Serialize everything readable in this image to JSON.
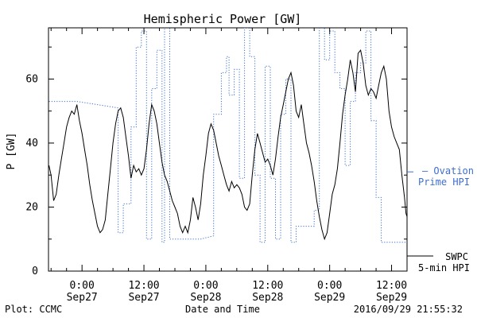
{
  "chart_data": {
    "type": "line",
    "title": "Hemispheric Power [GW]",
    "xlabel": "Date and Time",
    "ylabel": "P [GW]",
    "x_unit": "hours since Sep27 00:00",
    "xlim": [
      -6.5,
      63
    ],
    "ylim": [
      0,
      76
    ],
    "yticks": [
      0,
      20,
      40,
      60
    ],
    "xticks": [
      {
        "x": 0,
        "time": "0:00",
        "date": "Sep27"
      },
      {
        "x": 12,
        "time": "12:00",
        "date": "Sep27"
      },
      {
        "x": 24,
        "time": "0:00",
        "date": "Sep28"
      },
      {
        "x": 36,
        "time": "12:00",
        "date": "Sep28"
      },
      {
        "x": 48,
        "time": "0:00",
        "date": "Sep29"
      },
      {
        "x": 60,
        "time": "12:00",
        "date": "Sep29"
      }
    ],
    "grid": false,
    "legend_position": "right",
    "footer_left": "Plot: CCMC",
    "footer_right": "2016/09/29 21:55:32",
    "series": [
      {
        "name": "SWPC 5-min HPI",
        "legend_line1": "SWPC",
        "legend_line2": "5-min HPI",
        "color": "#000000",
        "style": "solid",
        "points": [
          [
            -6.4,
            33
          ],
          [
            -6.0,
            30
          ],
          [
            -5.5,
            22
          ],
          [
            -5.0,
            24
          ],
          [
            -4.5,
            30
          ],
          [
            -4.0,
            35
          ],
          [
            -3.5,
            40
          ],
          [
            -3.0,
            45
          ],
          [
            -2.5,
            48
          ],
          [
            -2.0,
            50
          ],
          [
            -1.5,
            49
          ],
          [
            -1.0,
            52
          ],
          [
            -0.5,
            47
          ],
          [
            0.0,
            43
          ],
          [
            0.5,
            38
          ],
          [
            1.0,
            33
          ],
          [
            1.5,
            27
          ],
          [
            2.0,
            22
          ],
          [
            2.5,
            18
          ],
          [
            3.0,
            14
          ],
          [
            3.5,
            12
          ],
          [
            4.0,
            13
          ],
          [
            4.5,
            16
          ],
          [
            5.0,
            24
          ],
          [
            5.5,
            32
          ],
          [
            6.0,
            40
          ],
          [
            6.5,
            46
          ],
          [
            7.0,
            50
          ],
          [
            7.5,
            51
          ],
          [
            8.0,
            48
          ],
          [
            8.5,
            42
          ],
          [
            9.0,
            36
          ],
          [
            9.5,
            29
          ],
          [
            10.0,
            33
          ],
          [
            10.5,
            31
          ],
          [
            11.0,
            32
          ],
          [
            11.5,
            30
          ],
          [
            12.0,
            32
          ],
          [
            12.5,
            38
          ],
          [
            13.0,
            46
          ],
          [
            13.5,
            52
          ],
          [
            14.0,
            50
          ],
          [
            14.5,
            46
          ],
          [
            15.0,
            40
          ],
          [
            15.5,
            34
          ],
          [
            16.0,
            30
          ],
          [
            16.5,
            28
          ],
          [
            17.0,
            25
          ],
          [
            17.5,
            22
          ],
          [
            18.0,
            20
          ],
          [
            18.5,
            18
          ],
          [
            19.0,
            14
          ],
          [
            19.5,
            12
          ],
          [
            20.0,
            14
          ],
          [
            20.5,
            12
          ],
          [
            21.0,
            16
          ],
          [
            21.5,
            23
          ],
          [
            22.0,
            20
          ],
          [
            22.5,
            16
          ],
          [
            23.0,
            21
          ],
          [
            23.5,
            30
          ],
          [
            24.0,
            36
          ],
          [
            24.5,
            43
          ],
          [
            25.0,
            46
          ],
          [
            25.5,
            44
          ],
          [
            26.0,
            40
          ],
          [
            26.5,
            36
          ],
          [
            27.0,
            33
          ],
          [
            27.5,
            30
          ],
          [
            28.0,
            27
          ],
          [
            28.5,
            25
          ],
          [
            29.0,
            28
          ],
          [
            29.5,
            26
          ],
          [
            30.0,
            27
          ],
          [
            30.5,
            26
          ],
          [
            31.0,
            24
          ],
          [
            31.5,
            20
          ],
          [
            32.0,
            19
          ],
          [
            32.5,
            21
          ],
          [
            33.0,
            30
          ],
          [
            33.5,
            38
          ],
          [
            34.0,
            43
          ],
          [
            34.5,
            40
          ],
          [
            35.0,
            37
          ],
          [
            35.5,
            34
          ],
          [
            36.0,
            35
          ],
          [
            36.5,
            33
          ],
          [
            37.0,
            30
          ],
          [
            37.5,
            35
          ],
          [
            38.0,
            42
          ],
          [
            38.5,
            48
          ],
          [
            39.0,
            52
          ],
          [
            39.5,
            56
          ],
          [
            40.0,
            60
          ],
          [
            40.5,
            62
          ],
          [
            41.0,
            58
          ],
          [
            41.5,
            50
          ],
          [
            42.0,
            48
          ],
          [
            42.5,
            52
          ],
          [
            43.0,
            46
          ],
          [
            43.5,
            40
          ],
          [
            44.0,
            37
          ],
          [
            44.5,
            33
          ],
          [
            45.0,
            28
          ],
          [
            45.5,
            22
          ],
          [
            46.0,
            17
          ],
          [
            46.5,
            13
          ],
          [
            47.0,
            10
          ],
          [
            47.5,
            12
          ],
          [
            48.0,
            18
          ],
          [
            48.5,
            24
          ],
          [
            49.0,
            27
          ],
          [
            49.5,
            32
          ],
          [
            50.0,
            40
          ],
          [
            50.5,
            49
          ],
          [
            51.0,
            55
          ],
          [
            51.5,
            60
          ],
          [
            52.0,
            66
          ],
          [
            52.5,
            62
          ],
          [
            53.0,
            56
          ],
          [
            53.5,
            68
          ],
          [
            54.0,
            69
          ],
          [
            54.5,
            65
          ],
          [
            55.0,
            58
          ],
          [
            55.5,
            55
          ],
          [
            56.0,
            57
          ],
          [
            56.5,
            56
          ],
          [
            57.0,
            54
          ],
          [
            57.5,
            58
          ],
          [
            58.0,
            62
          ],
          [
            58.5,
            64
          ],
          [
            59.0,
            60
          ],
          [
            59.5,
            50
          ],
          [
            60.0,
            45
          ],
          [
            60.5,
            42
          ],
          [
            61.0,
            40
          ],
          [
            61.5,
            38
          ],
          [
            62.0,
            30
          ],
          [
            62.5,
            23
          ],
          [
            62.8,
            18
          ],
          [
            63.0,
            17
          ]
        ]
      },
      {
        "name": "Ovation Prime HPI",
        "legend_line1": "— Ovation",
        "legend_line2": "Prime HPI",
        "color": "#3d6fd0",
        "style": "dotted",
        "points": [
          [
            -6.4,
            53
          ],
          [
            -1.0,
            53
          ],
          [
            3.0,
            52
          ],
          [
            7.0,
            51
          ],
          [
            7.0,
            12
          ],
          [
            8.0,
            12
          ],
          [
            8.0,
            21
          ],
          [
            9.5,
            21
          ],
          [
            9.5,
            45
          ],
          [
            10.5,
            45
          ],
          [
            10.5,
            70
          ],
          [
            11.5,
            70
          ],
          [
            11.5,
            75
          ],
          [
            12.5,
            75
          ],
          [
            12.5,
            10
          ],
          [
            13.5,
            10
          ],
          [
            13.5,
            57
          ],
          [
            14.5,
            57
          ],
          [
            14.5,
            69
          ],
          [
            15.5,
            69
          ],
          [
            15.5,
            9
          ],
          [
            16.0,
            9
          ],
          [
            16.0,
            78
          ],
          [
            17.0,
            78
          ],
          [
            17.0,
            10
          ],
          [
            19.0,
            10
          ],
          [
            23.0,
            10
          ],
          [
            23.0,
            10
          ],
          [
            25.5,
            11
          ],
          [
            25.5,
            49
          ],
          [
            27.0,
            49
          ],
          [
            27.0,
            62
          ],
          [
            28.0,
            62
          ],
          [
            28.0,
            67
          ],
          [
            28.5,
            67
          ],
          [
            28.5,
            55
          ],
          [
            29.5,
            55
          ],
          [
            29.5,
            63
          ],
          [
            30.5,
            63
          ],
          [
            30.5,
            29
          ],
          [
            31.5,
            29
          ],
          [
            31.5,
            76
          ],
          [
            32.5,
            76
          ],
          [
            32.5,
            67
          ],
          [
            33.5,
            67
          ],
          [
            33.5,
            30
          ],
          [
            34.5,
            30
          ],
          [
            34.5,
            9
          ],
          [
            35.5,
            9
          ],
          [
            35.5,
            64
          ],
          [
            36.5,
            64
          ],
          [
            36.5,
            29
          ],
          [
            37.5,
            29
          ],
          [
            37.5,
            10
          ],
          [
            38.5,
            10
          ],
          [
            38.5,
            49
          ],
          [
            39.5,
            49
          ],
          [
            39.5,
            60
          ],
          [
            40.5,
            60
          ],
          [
            40.5,
            9
          ],
          [
            41.5,
            9
          ],
          [
            41.5,
            14
          ],
          [
            45.0,
            14
          ],
          [
            45.0,
            19
          ],
          [
            46.0,
            19
          ],
          [
            46.0,
            77
          ],
          [
            47.0,
            77
          ],
          [
            47.0,
            66
          ],
          [
            48.0,
            66
          ],
          [
            48.0,
            75
          ],
          [
            49.0,
            75
          ],
          [
            49.0,
            62
          ],
          [
            50.0,
            62
          ],
          [
            50.0,
            57
          ],
          [
            51.0,
            57
          ],
          [
            51.0,
            33
          ],
          [
            52.0,
            33
          ],
          [
            52.0,
            53
          ],
          [
            53.0,
            53
          ],
          [
            53.0,
            62
          ],
          [
            54.0,
            62
          ],
          [
            54.0,
            65
          ],
          [
            55.0,
            65
          ],
          [
            55.0,
            75
          ],
          [
            56.0,
            75
          ],
          [
            56.0,
            47
          ],
          [
            57.0,
            47
          ],
          [
            57.0,
            23
          ],
          [
            58.0,
            23
          ],
          [
            58.0,
            9
          ],
          [
            63.0,
            9
          ]
        ]
      }
    ]
  }
}
